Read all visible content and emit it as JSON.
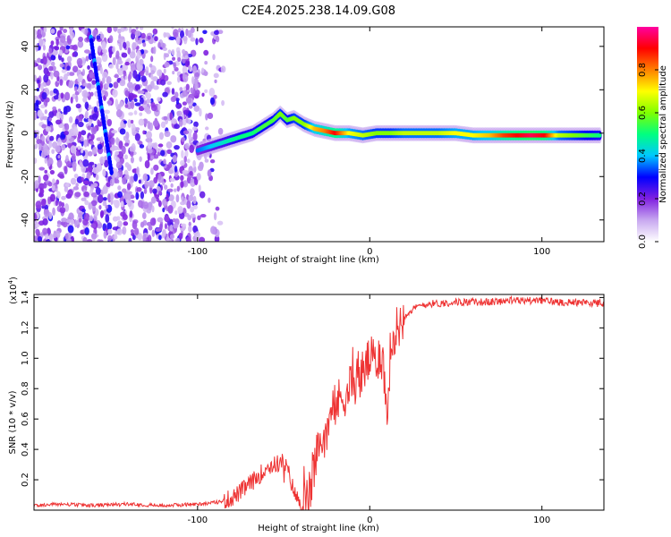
{
  "title": "C2E4.2025.238.14.09.G08",
  "chart_data": [
    {
      "type": "heatmap",
      "title": "C2E4.2025.238.14.09.G08",
      "xlabel": "Height of straight line (km)",
      "ylabel": "Frequency (Hz)",
      "xlim": [
        -195,
        136
      ],
      "ylim": [
        -50,
        49
      ],
      "x_ticks": [
        -100,
        0,
        100
      ],
      "x_tick_labels": [
        "-100",
        "0",
        "100"
      ],
      "y_ticks": [
        -40,
        -20,
        0,
        20,
        40
      ],
      "y_tick_labels": [
        "-40",
        "-20",
        "0",
        "20",
        "40"
      ],
      "colorbar": {
        "label": "Normalized spectral amplitude",
        "range": [
          0.0,
          1.0
        ],
        "ticks": [
          0.0,
          0.2,
          0.4,
          0.6,
          0.8
        ],
        "tick_labels": [
          "0.0",
          "0.2",
          "0.4",
          "0.6",
          "0.8"
        ],
        "colors": [
          "#ffffff",
          "#c8a8f0",
          "#8020e0",
          "#0000ff",
          "#00c8ff",
          "#00ff80",
          "#80ff00",
          "#ffff00",
          "#ff8000",
          "#ff0000",
          "#ff00a0"
        ]
      },
      "noise_region_x": [
        -195,
        -85
      ],
      "diagonal_streak": [
        [
          -162,
          44
        ],
        [
          -150,
          -18
        ]
      ],
      "ridge": [
        {
          "x": -100,
          "y": -8,
          "a": 0.35
        },
        {
          "x": -92,
          "y": -6,
          "a": 0.4
        },
        {
          "x": -84,
          "y": -4,
          "a": 0.45
        },
        {
          "x": -76,
          "y": -2,
          "a": 0.5
        },
        {
          "x": -68,
          "y": 0,
          "a": 0.5
        },
        {
          "x": -62,
          "y": 3,
          "a": 0.55
        },
        {
          "x": -56,
          "y": 6,
          "a": 0.55
        },
        {
          "x": -52,
          "y": 9,
          "a": 0.6
        },
        {
          "x": -48,
          "y": 6,
          "a": 0.55
        },
        {
          "x": -44,
          "y": 7,
          "a": 0.6
        },
        {
          "x": -38,
          "y": 4,
          "a": 0.6
        },
        {
          "x": -32,
          "y": 2,
          "a": 0.75
        },
        {
          "x": -26,
          "y": 1,
          "a": 0.8
        },
        {
          "x": -20,
          "y": 0,
          "a": 0.9
        },
        {
          "x": -12,
          "y": 0,
          "a": 0.7
        },
        {
          "x": -4,
          "y": -1,
          "a": 0.65
        },
        {
          "x": 4,
          "y": 0,
          "a": 0.6
        },
        {
          "x": 12,
          "y": 0,
          "a": 0.6
        },
        {
          "x": 20,
          "y": 0,
          "a": 0.65
        },
        {
          "x": 30,
          "y": 0,
          "a": 0.65
        },
        {
          "x": 40,
          "y": 0,
          "a": 0.65
        },
        {
          "x": 50,
          "y": 0,
          "a": 0.7
        },
        {
          "x": 60,
          "y": -1,
          "a": 0.7
        },
        {
          "x": 70,
          "y": -1,
          "a": 0.75
        },
        {
          "x": 78,
          "y": -1,
          "a": 0.85
        },
        {
          "x": 86,
          "y": -1,
          "a": 0.9
        },
        {
          "x": 94,
          "y": -1,
          "a": 0.95
        },
        {
          "x": 102,
          "y": -1,
          "a": 0.9
        },
        {
          "x": 110,
          "y": -1,
          "a": 0.65
        },
        {
          "x": 118,
          "y": -1,
          "a": 0.6
        },
        {
          "x": 126,
          "y": -1,
          "a": 0.55
        },
        {
          "x": 134,
          "y": -1,
          "a": 0.5
        }
      ]
    },
    {
      "type": "line",
      "xlabel": "Height of straight line (km)",
      "ylabel": "SNR (10 * v/v)",
      "multiplier_label": "(x10",
      "multiplier_exp": "4",
      "multiplier_close": ")",
      "xlim": [
        -195,
        136
      ],
      "ylim": [
        0.0,
        1.42
      ],
      "x_ticks": [
        -100,
        0,
        100
      ],
      "x_tick_labels": [
        "-100",
        "0",
        "100"
      ],
      "y_ticks": [
        0.2,
        0.4,
        0.6,
        0.8,
        1.0,
        1.2,
        1.4
      ],
      "y_tick_labels": [
        "0.2",
        "0.4",
        "0.6",
        "0.8",
        "1.0",
        "1.2",
        "1.4"
      ],
      "color": "#ee3333",
      "series": [
        {
          "name": "SNR",
          "x": [
            -195,
            -180,
            -160,
            -140,
            -120,
            -100,
            -90,
            -85,
            -80,
            -75,
            -70,
            -65,
            -60,
            -55,
            -50,
            -47,
            -44,
            -41,
            -38,
            -35,
            -32,
            -28,
            -24,
            -20,
            -16,
            -12,
            -8,
            -4,
            0,
            3,
            6,
            8,
            10,
            12,
            14,
            16,
            18,
            20,
            22,
            25,
            30,
            35,
            40,
            50,
            60,
            70,
            80,
            90,
            100,
            110,
            120,
            136
          ],
          "y": [
            0.03,
            0.04,
            0.03,
            0.04,
            0.03,
            0.04,
            0.05,
            0.06,
            0.08,
            0.12,
            0.17,
            0.22,
            0.28,
            0.3,
            0.32,
            0.24,
            0.12,
            0.05,
            0.04,
            0.1,
            0.3,
            0.45,
            0.58,
            0.68,
            0.75,
            0.8,
            0.86,
            0.9,
            1.0,
            0.95,
            1.05,
            0.95,
            0.6,
            1.05,
            1.15,
            1.2,
            1.24,
            1.28,
            1.3,
            1.32,
            1.35,
            1.36,
            1.36,
            1.37,
            1.37,
            1.37,
            1.38,
            1.38,
            1.38,
            1.37,
            1.37,
            1.36
          ]
        }
      ]
    }
  ]
}
